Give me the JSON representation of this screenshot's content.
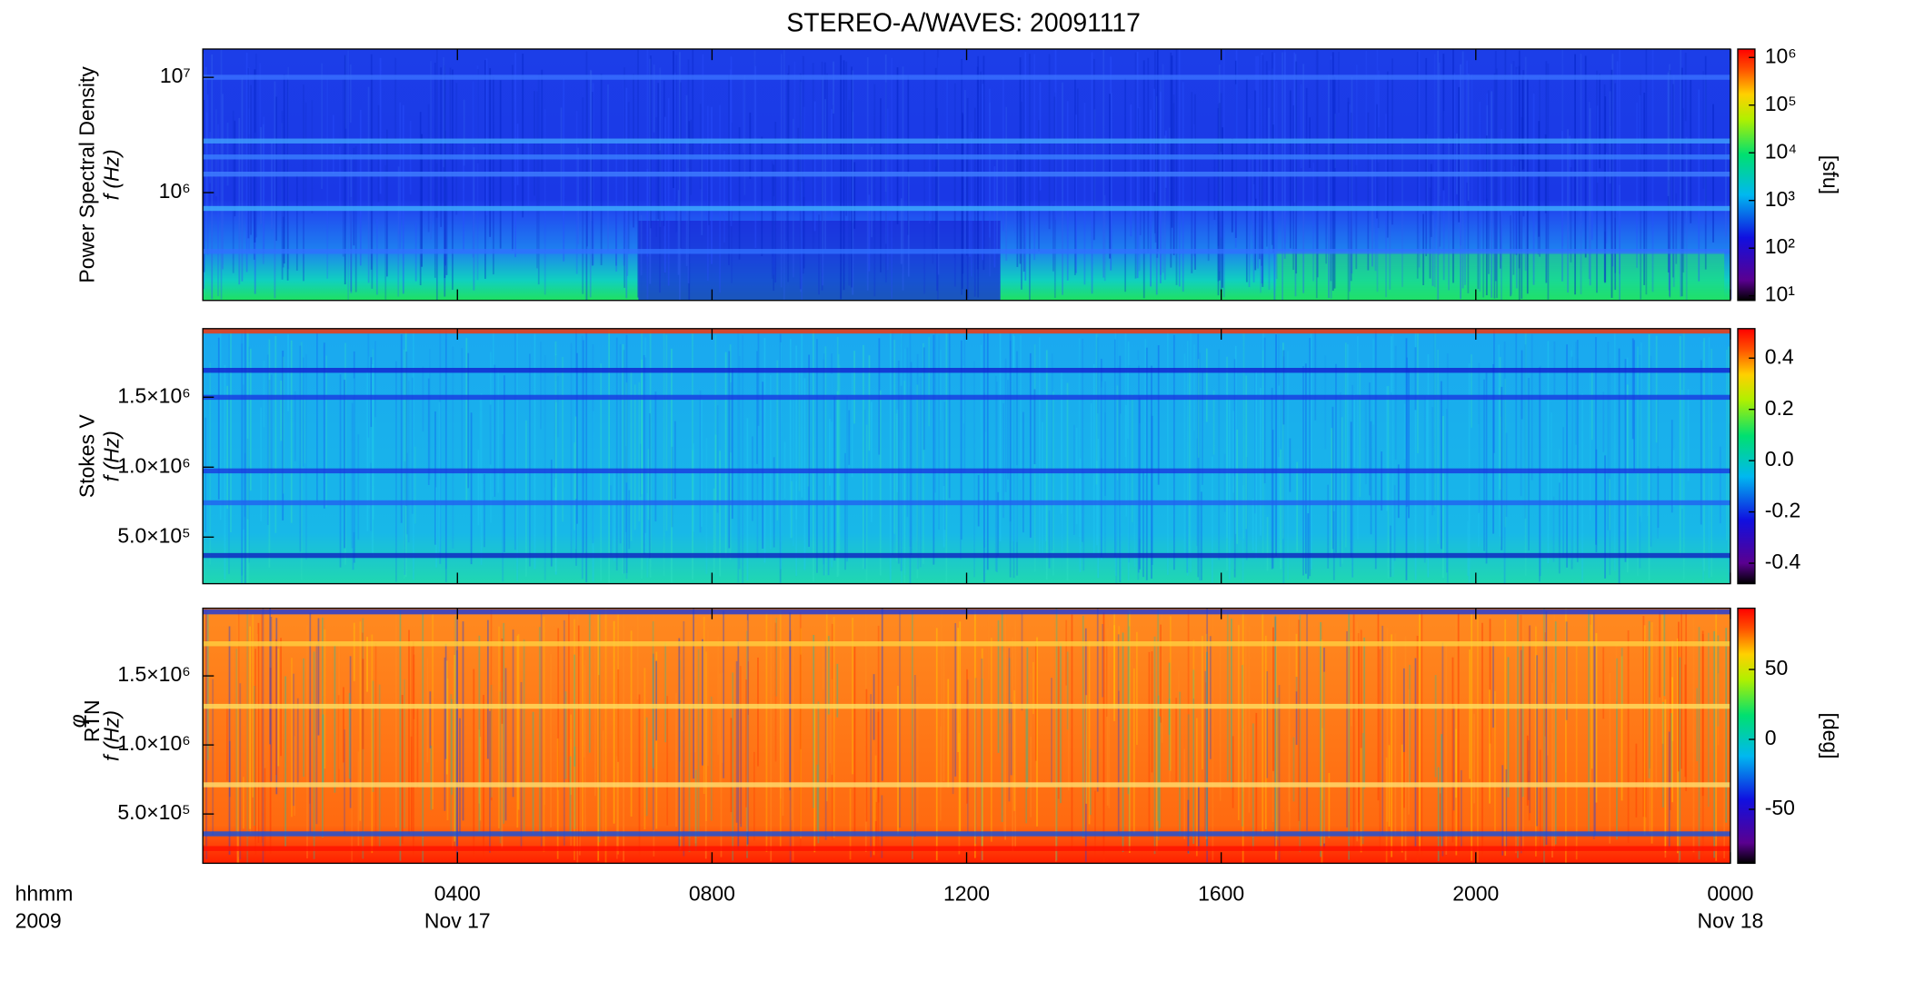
{
  "chart_data": [
    {
      "type": "heatmap",
      "title": "STEREO-A/WAVES: 20091117",
      "ylabel": [
        "Power Spectral Density",
        "f (Hz)"
      ],
      "ylog": true,
      "ylim": [
        116000,
        17600000
      ],
      "yticks": [
        {
          "value": 1000000,
          "label": "10⁶"
        },
        {
          "value": 10000000,
          "label": "10⁷"
        }
      ],
      "zlog": true,
      "zlim": [
        8,
        1500000
      ],
      "zticks": [
        {
          "value": 10,
          "label": "10¹"
        },
        {
          "value": 100,
          "label": "10²"
        },
        {
          "value": 1000,
          "label": "10³"
        },
        {
          "value": 10000,
          "label": "10⁴"
        },
        {
          "value": 100000,
          "label": "10⁵"
        },
        {
          "value": 1000000,
          "label": "10⁶"
        }
      ],
      "zlabel": "[sfu]"
    },
    {
      "type": "heatmap",
      "ylabel": [
        "Stokes V",
        "f (Hz)"
      ],
      "ylim": [
        167000,
        1990000
      ],
      "yticks": [
        {
          "value": 500000,
          "label": "5.0×10⁵"
        },
        {
          "value": 1000000,
          "label": "1.0×10⁶"
        },
        {
          "value": 1500000,
          "label": "1.5×10⁶"
        }
      ],
      "zlim": [
        -0.48,
        0.515
      ],
      "zticks": [
        -0.4,
        -0.2,
        {
          "value": 0,
          "label": "0.0"
        },
        0.2,
        0.4
      ]
    },
    {
      "type": "heatmap",
      "ylabel": [
        "φ",
        "f (Hz)"
      ],
      "ylabel_sub": "RTN",
      "ylim": [
        143000,
        1990000
      ],
      "yticks": [
        {
          "value": 500000,
          "label": "5.0×10⁵"
        },
        {
          "value": 1000000,
          "label": "1.0×10⁶"
        },
        {
          "value": 1500000,
          "label": "1.5×10⁶"
        }
      ],
      "zlim": [
        -88.6,
        93.8
      ],
      "zticks": [
        -50,
        0,
        50
      ],
      "zlabel": "[deg]",
      "xlim": [
        0,
        24
      ],
      "xticks": [
        {
          "value": 4,
          "label": "0400"
        },
        {
          "value": 8,
          "label": "0800"
        },
        {
          "value": 12,
          "label": "1200"
        },
        {
          "value": 16,
          "label": "1600"
        },
        {
          "value": 20,
          "label": "2000"
        },
        {
          "value": 24,
          "label": "0000"
        }
      ],
      "xdates": [
        {
          "value": 4,
          "label": "Nov 17"
        },
        {
          "value": 24,
          "label": "Nov 18"
        }
      ],
      "xlabel": [
        "hhmm",
        "2009"
      ]
    }
  ]
}
